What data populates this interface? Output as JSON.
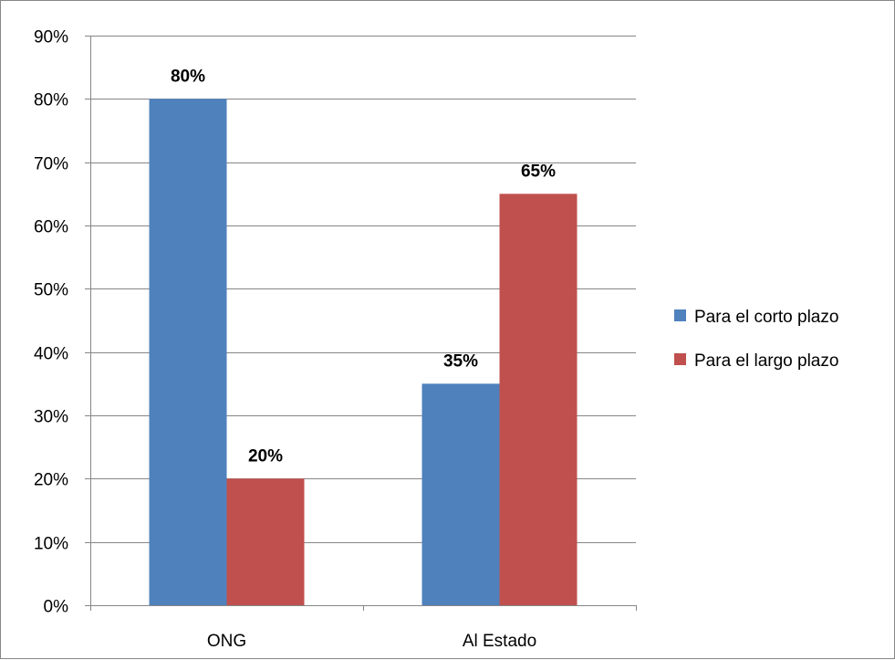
{
  "chart_data": {
    "type": "bar",
    "title": "",
    "xlabel": "",
    "ylabel": "",
    "categories": [
      "ONG",
      "Al Estado"
    ],
    "series": [
      {
        "name": "Para el corto plazo",
        "color": "#4F81BD",
        "values": [
          0.8,
          0.35
        ],
        "labels": [
          "80%",
          "35%"
        ]
      },
      {
        "name": "Para el largo plazo",
        "color": "#C0504D",
        "values": [
          0.2,
          0.65
        ],
        "labels": [
          "20%",
          "65%"
        ]
      }
    ],
    "ylim": [
      0,
      0.9
    ],
    "y_ticks": [
      0,
      0.1,
      0.2,
      0.3,
      0.4,
      0.5,
      0.6,
      0.7,
      0.8,
      0.9
    ],
    "y_tick_labels": [
      "0%",
      "10%",
      "20%",
      "30%",
      "40%",
      "50%",
      "60%",
      "70%",
      "80%",
      "90%"
    ],
    "grid": true,
    "legend": "right"
  }
}
